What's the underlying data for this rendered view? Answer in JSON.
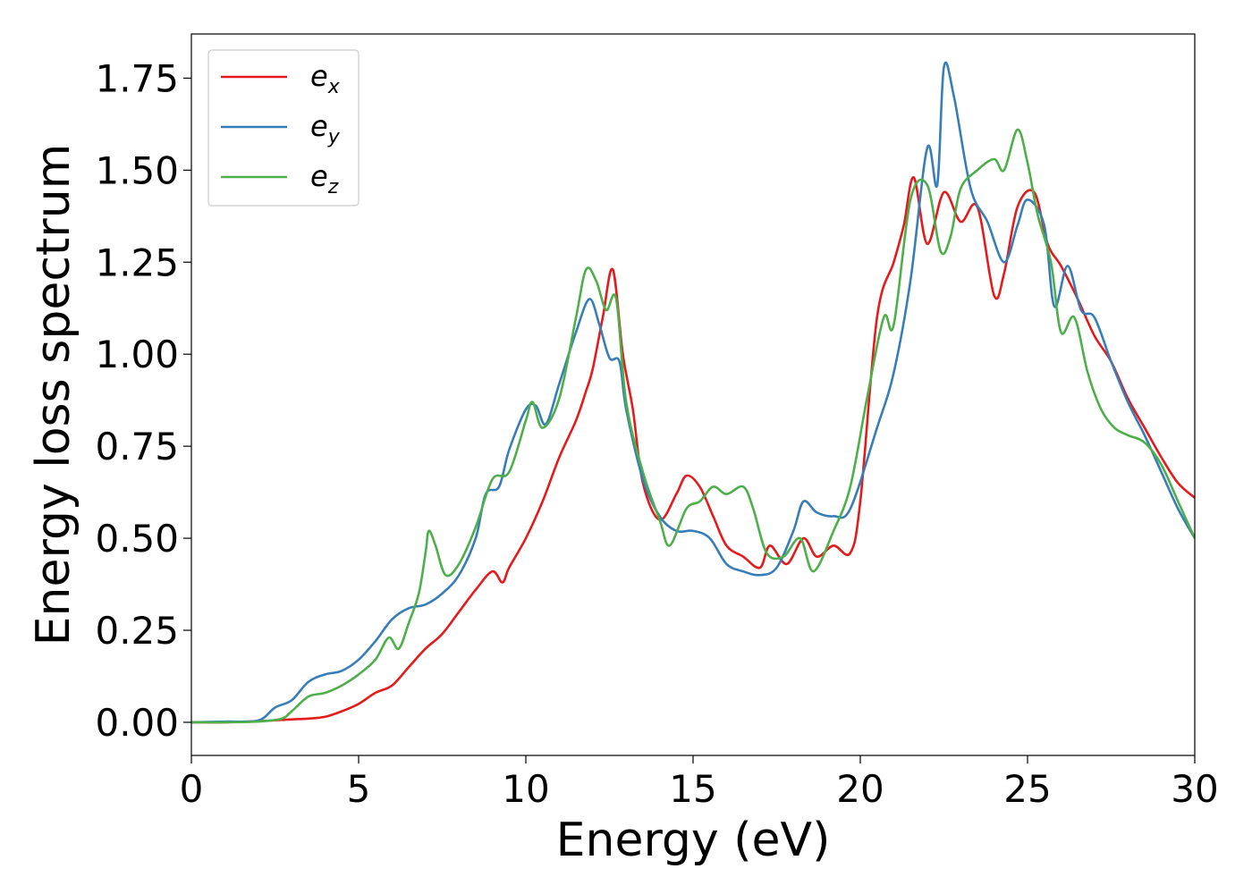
{
  "chart_data": {
    "type": "line",
    "xlabel": "Energy (eV)",
    "ylabel": "Energy loss spectrum",
    "xlim": [
      0,
      30
    ],
    "ylim": [
      -0.09,
      1.87
    ],
    "xticks": [
      0,
      5,
      10,
      15,
      20,
      25,
      30
    ],
    "xtick_labels": [
      "0",
      "5",
      "10",
      "15",
      "20",
      "25",
      "30"
    ],
    "yticks": [
      0.0,
      0.25,
      0.5,
      0.75,
      1.0,
      1.25,
      1.5,
      1.75
    ],
    "ytick_labels": [
      "0.00",
      "0.25",
      "0.50",
      "0.75",
      "1.00",
      "1.25",
      "1.50",
      "1.75"
    ],
    "grid": false,
    "legend_position": "top-left",
    "series": [
      {
        "name": "e",
        "subscript": "x",
        "color": "#e41a1c",
        "points": [
          [
            0,
            0
          ],
          [
            1,
            0
          ],
          [
            2,
            0.003
          ],
          [
            3,
            0.008
          ],
          [
            3.5,
            0.01
          ],
          [
            4,
            0.015
          ],
          [
            4.5,
            0.03
          ],
          [
            5,
            0.05
          ],
          [
            5.5,
            0.08
          ],
          [
            6,
            0.1
          ],
          [
            6.5,
            0.15
          ],
          [
            7,
            0.2
          ],
          [
            7.5,
            0.24
          ],
          [
            8,
            0.3
          ],
          [
            8.5,
            0.36
          ],
          [
            9,
            0.41
          ],
          [
            9.3,
            0.38
          ],
          [
            9.5,
            0.42
          ],
          [
            10,
            0.5
          ],
          [
            10.5,
            0.6
          ],
          [
            11,
            0.72
          ],
          [
            11.5,
            0.82
          ],
          [
            11.8,
            0.9
          ],
          [
            12,
            0.96
          ],
          [
            12.3,
            1.1
          ],
          [
            12.6,
            1.23
          ],
          [
            12.9,
            1.0
          ],
          [
            13.2,
            0.85
          ],
          [
            13.5,
            0.65
          ],
          [
            14,
            0.55
          ],
          [
            14.5,
            0.62
          ],
          [
            14.8,
            0.67
          ],
          [
            15.2,
            0.64
          ],
          [
            15.6,
            0.56
          ],
          [
            16,
            0.48
          ],
          [
            16.5,
            0.45
          ],
          [
            17,
            0.42
          ],
          [
            17.3,
            0.48
          ],
          [
            17.8,
            0.43
          ],
          [
            18.3,
            0.5
          ],
          [
            18.7,
            0.45
          ],
          [
            19.2,
            0.48
          ],
          [
            19.7,
            0.46
          ],
          [
            20,
            0.6
          ],
          [
            20.5,
            1.1
          ],
          [
            21,
            1.25
          ],
          [
            21.3,
            1.35
          ],
          [
            21.6,
            1.48
          ],
          [
            22,
            1.3
          ],
          [
            22.5,
            1.44
          ],
          [
            23,
            1.36
          ],
          [
            23.5,
            1.4
          ],
          [
            24,
            1.16
          ],
          [
            24.3,
            1.22
          ],
          [
            24.7,
            1.4
          ],
          [
            25.2,
            1.44
          ],
          [
            25.6,
            1.3
          ],
          [
            26,
            1.24
          ],
          [
            26.5,
            1.15
          ],
          [
            27,
            1.05
          ],
          [
            27.5,
            0.98
          ],
          [
            28,
            0.88
          ],
          [
            28.5,
            0.8
          ],
          [
            29,
            0.72
          ],
          [
            29.5,
            0.65
          ],
          [
            30,
            0.61
          ]
        ]
      },
      {
        "name": "e",
        "subscript": "y",
        "color": "#377eb8",
        "points": [
          [
            0,
            0
          ],
          [
            1,
            0.002
          ],
          [
            2,
            0.005
          ],
          [
            2.5,
            0.04
          ],
          [
            3,
            0.06
          ],
          [
            3.5,
            0.11
          ],
          [
            4,
            0.13
          ],
          [
            4.5,
            0.14
          ],
          [
            5,
            0.17
          ],
          [
            5.5,
            0.22
          ],
          [
            6,
            0.28
          ],
          [
            6.5,
            0.31
          ],
          [
            7,
            0.32
          ],
          [
            7.5,
            0.35
          ],
          [
            8,
            0.4
          ],
          [
            8.5,
            0.5
          ],
          [
            8.8,
            0.62
          ],
          [
            9.2,
            0.64
          ],
          [
            9.5,
            0.74
          ],
          [
            10,
            0.85
          ],
          [
            10.3,
            0.86
          ],
          [
            10.6,
            0.81
          ],
          [
            11,
            0.92
          ],
          [
            11.5,
            1.06
          ],
          [
            11.9,
            1.15
          ],
          [
            12.2,
            1.08
          ],
          [
            12.5,
            0.99
          ],
          [
            12.8,
            0.98
          ],
          [
            13,
            0.85
          ],
          [
            13.5,
            0.66
          ],
          [
            14,
            0.56
          ],
          [
            14.5,
            0.52
          ],
          [
            15,
            0.52
          ],
          [
            15.5,
            0.5
          ],
          [
            16,
            0.43
          ],
          [
            16.5,
            0.41
          ],
          [
            17,
            0.4
          ],
          [
            17.5,
            0.42
          ],
          [
            18,
            0.52
          ],
          [
            18.3,
            0.6
          ],
          [
            18.7,
            0.57
          ],
          [
            19.2,
            0.56
          ],
          [
            19.7,
            0.58
          ],
          [
            20.5,
            0.8
          ],
          [
            21,
            0.95
          ],
          [
            21.5,
            1.2
          ],
          [
            22,
            1.56
          ],
          [
            22.3,
            1.46
          ],
          [
            22.5,
            1.78
          ],
          [
            22.8,
            1.7
          ],
          [
            23.3,
            1.45
          ],
          [
            23.8,
            1.36
          ],
          [
            24.3,
            1.25
          ],
          [
            24.7,
            1.35
          ],
          [
            25,
            1.42
          ],
          [
            25.5,
            1.35
          ],
          [
            25.8,
            1.13
          ],
          [
            26.2,
            1.24
          ],
          [
            26.6,
            1.12
          ],
          [
            27,
            1.1
          ],
          [
            27.5,
            0.98
          ],
          [
            28,
            0.87
          ],
          [
            28.5,
            0.78
          ],
          [
            29,
            0.68
          ],
          [
            29.5,
            0.58
          ],
          [
            30,
            0.5
          ]
        ]
      },
      {
        "name": "e",
        "subscript": "z",
        "color": "#4daf4a",
        "points": [
          [
            0,
            0
          ],
          [
            1,
            0
          ],
          [
            2,
            0.002
          ],
          [
            2.7,
            0.01
          ],
          [
            3,
            0.03
          ],
          [
            3.5,
            0.07
          ],
          [
            4,
            0.08
          ],
          [
            4.5,
            0.1
          ],
          [
            5,
            0.13
          ],
          [
            5.5,
            0.17
          ],
          [
            5.9,
            0.23
          ],
          [
            6.2,
            0.2
          ],
          [
            6.5,
            0.27
          ],
          [
            6.8,
            0.35
          ],
          [
            7,
            0.46
          ],
          [
            7.1,
            0.52
          ],
          [
            7.3,
            0.48
          ],
          [
            7.6,
            0.4
          ],
          [
            8,
            0.43
          ],
          [
            8.5,
            0.53
          ],
          [
            9,
            0.66
          ],
          [
            9.5,
            0.68
          ],
          [
            10,
            0.82
          ],
          [
            10.2,
            0.87
          ],
          [
            10.5,
            0.8
          ],
          [
            11,
            0.88
          ],
          [
            11.5,
            1.1
          ],
          [
            11.8,
            1.23
          ],
          [
            12.1,
            1.2
          ],
          [
            12.4,
            1.12
          ],
          [
            12.7,
            1.15
          ],
          [
            13,
            0.87
          ],
          [
            13.5,
            0.68
          ],
          [
            14,
            0.55
          ],
          [
            14.3,
            0.48
          ],
          [
            14.8,
            0.58
          ],
          [
            15.2,
            0.6
          ],
          [
            15.6,
            0.64
          ],
          [
            16,
            0.62
          ],
          [
            16.5,
            0.64
          ],
          [
            16.8,
            0.58
          ],
          [
            17.2,
            0.46
          ],
          [
            17.7,
            0.45
          ],
          [
            18.2,
            0.5
          ],
          [
            18.6,
            0.41
          ],
          [
            19.2,
            0.52
          ],
          [
            19.7,
            0.64
          ],
          [
            20.2,
            0.88
          ],
          [
            20.7,
            1.1
          ],
          [
            21,
            1.08
          ],
          [
            21.5,
            1.42
          ],
          [
            22,
            1.46
          ],
          [
            22.4,
            1.28
          ],
          [
            22.7,
            1.32
          ],
          [
            23,
            1.45
          ],
          [
            23.5,
            1.5
          ],
          [
            24,
            1.53
          ],
          [
            24.3,
            1.5
          ],
          [
            24.7,
            1.61
          ],
          [
            25,
            1.52
          ],
          [
            25.3,
            1.38
          ],
          [
            25.7,
            1.25
          ],
          [
            26,
            1.06
          ],
          [
            26.4,
            1.1
          ],
          [
            26.8,
            0.95
          ],
          [
            27.2,
            0.85
          ],
          [
            27.6,
            0.8
          ],
          [
            28,
            0.78
          ],
          [
            28.5,
            0.76
          ],
          [
            29,
            0.7
          ],
          [
            29.5,
            0.6
          ],
          [
            30,
            0.5
          ]
        ]
      }
    ]
  }
}
